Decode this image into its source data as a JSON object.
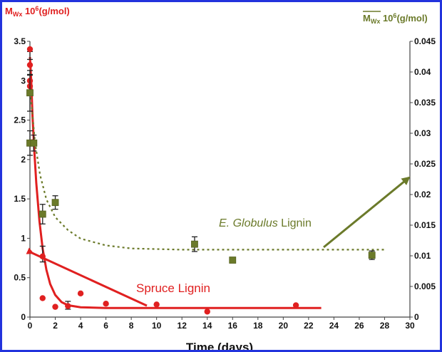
{
  "chart_data": {
    "type": "scatter",
    "title": "",
    "xlabel": "Time (days)",
    "ylabel_left": {
      "main": "M",
      "sub": "Wx",
      "rest": " 10",
      "sup": "6",
      "unit": "(g/mol)"
    },
    "ylabel_right": {
      "main": "M",
      "sub": "Wx",
      "rest": " 10",
      "sup": "6",
      "unit": "(g/mol)"
    },
    "xlim": [
      0,
      30
    ],
    "ylim_left": [
      0,
      3.5
    ],
    "ylim_right": [
      0,
      0.045
    ],
    "x_ticks": [
      "0",
      "2",
      "4",
      "6",
      "8",
      "10",
      "12",
      "14",
      "16",
      "18",
      "20",
      "22",
      "24",
      "26",
      "28",
      "30"
    ],
    "y_ticks_left": [
      "0",
      "0.5",
      "1",
      "1.5",
      "2",
      "2.5",
      "3",
      "3.5"
    ],
    "y_ticks_right": [
      "0",
      "0.005",
      "0.01",
      "0.015",
      "0.02",
      "0.025",
      "0.03",
      "0.035",
      "0.04",
      "0.045"
    ],
    "grid": false,
    "series": [
      {
        "name": "Spruce Lignin",
        "axis": "left",
        "color": "#e02020",
        "marker": "circle",
        "points": [
          {
            "x": 0,
            "y": 3.4
          },
          {
            "x": 0,
            "y": 3.2
          },
          {
            "x": 0,
            "y": 3.0
          },
          {
            "x": 0,
            "y": 2.93
          },
          {
            "x": 0.2,
            "y": 2.22
          },
          {
            "x": 1,
            "y": 0.77
          },
          {
            "x": 1,
            "y": 0.24
          },
          {
            "x": 2,
            "y": 0.13
          },
          {
            "x": 3,
            "y": 0.14
          },
          {
            "x": 4,
            "y": 0.3
          },
          {
            "x": 6,
            "y": 0.17
          },
          {
            "x": 10,
            "y": 0.16
          },
          {
            "x": 14,
            "y": 0.07
          },
          {
            "x": 21,
            "y": 0.15
          }
        ],
        "error_bars": [
          {
            "x": 0,
            "y": 3.32,
            "err": 0.05
          },
          {
            "x": 0,
            "y": 3.1,
            "err": 0.03
          },
          {
            "x": 1,
            "y": 0.8,
            "err": 0.1
          },
          {
            "x": 3,
            "y": 0.15,
            "err": 0.05
          }
        ],
        "fit": [
          {
            "x": 0,
            "y": 3.3
          },
          {
            "x": 0.1,
            "y": 3.0
          },
          {
            "x": 0.2,
            "y": 2.55
          },
          {
            "x": 0.35,
            "y": 2.1
          },
          {
            "x": 0.5,
            "y": 1.7
          },
          {
            "x": 0.75,
            "y": 1.22
          },
          {
            "x": 1,
            "y": 0.87
          },
          {
            "x": 1.3,
            "y": 0.6
          },
          {
            "x": 1.6,
            "y": 0.42
          },
          {
            "x": 2,
            "y": 0.28
          },
          {
            "x": 2.5,
            "y": 0.19
          },
          {
            "x": 3,
            "y": 0.15
          },
          {
            "x": 4,
            "y": 0.125
          },
          {
            "x": 6,
            "y": 0.115
          },
          {
            "x": 10,
            "y": 0.115
          },
          {
            "x": 16,
            "y": 0.115
          },
          {
            "x": 23,
            "y": 0.115
          }
        ]
      },
      {
        "name": "E. Globulus Lignin",
        "axis": "right",
        "color": "#6b7a2a",
        "marker": "square",
        "points": [
          {
            "x": 0,
            "y": 0.0366,
            "err": 0.003
          },
          {
            "x": 0,
            "y": 0.0284,
            "err": 0.002
          },
          {
            "x": 0.3,
            "y": 0.0284,
            "err": 0.0013
          },
          {
            "x": 1,
            "y": 0.0168,
            "err": 0.0016
          },
          {
            "x": 2,
            "y": 0.0187,
            "err": 0.0011
          },
          {
            "x": 13,
            "y": 0.0119,
            "err": 0.0012
          },
          {
            "x": 16,
            "y": 0.0093,
            "err": 0
          },
          {
            "x": 27,
            "y": 0.0101,
            "err": 0.0007
          }
        ],
        "fit": [
          {
            "x": 0,
            "y": 0.0375
          },
          {
            "x": 0.4,
            "y": 0.0285
          },
          {
            "x": 0.8,
            "y": 0.0232
          },
          {
            "x": 1.3,
            "y": 0.0192
          },
          {
            "x": 2,
            "y": 0.0163
          },
          {
            "x": 3,
            "y": 0.0142
          },
          {
            "x": 4,
            "y": 0.0128
          },
          {
            "x": 6,
            "y": 0.0117
          },
          {
            "x": 8,
            "y": 0.0112
          },
          {
            "x": 12,
            "y": 0.011
          },
          {
            "x": 20,
            "y": 0.011
          },
          {
            "x": 28,
            "y": 0.011
          }
        ]
      }
    ],
    "annotations": [
      {
        "text": "Spruce Lignin",
        "color": "#e02020"
      },
      {
        "text_italic": "E. Globulus",
        "text": " Lignin",
        "color": "#6b7a2a"
      }
    ]
  }
}
